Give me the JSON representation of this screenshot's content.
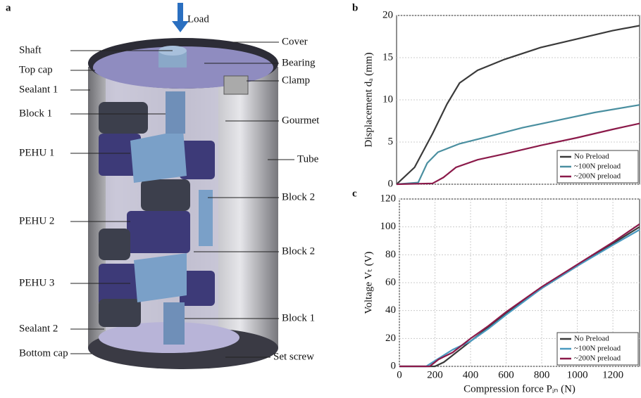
{
  "panel_a": {
    "panel_label": "a",
    "load": "Load",
    "left_labels": [
      "Shaft",
      "Top cap",
      "Sealant 1",
      "Block 1",
      "PEHU 1",
      "PEHU 2",
      "PEHU 3",
      "Sealant 2",
      "Bottom cap"
    ],
    "right_labels": [
      "Cover",
      "Bearing",
      "Clamp",
      "Gourmet",
      "Tube",
      "Block 2",
      "Block 2",
      "Block 1",
      "Set screw"
    ]
  },
  "chart_data": [
    {
      "type": "line",
      "panel_label": "b",
      "y_label": "Displacement dₐ (mm)",
      "xlim": [
        0,
        1350
      ],
      "ylim": [
        0,
        20
      ],
      "yticks": [
        0,
        5,
        10,
        15,
        20
      ],
      "grid": true,
      "legend": "lower right",
      "series": [
        {
          "name": "No Preload",
          "color": "#3a3a3a",
          "x": [
            0,
            100,
            200,
            280,
            350,
            450,
            600,
            800,
            1000,
            1200,
            1350
          ],
          "values": [
            0,
            2,
            6,
            9.5,
            12,
            13.5,
            14.8,
            16.2,
            17.2,
            18.2,
            18.8
          ]
        },
        {
          "name": "~100N preload",
          "color": "#4a8fa0",
          "x": [
            0,
            120,
            170,
            230,
            350,
            500,
            700,
            900,
            1100,
            1350
          ],
          "values": [
            0,
            0.2,
            2.5,
            3.8,
            4.8,
            5.6,
            6.7,
            7.6,
            8.5,
            9.4
          ]
        },
        {
          "name": "~200N preload",
          "color": "#8b1a4a",
          "x": [
            0,
            200,
            260,
            330,
            450,
            600,
            800,
            1000,
            1200,
            1350
          ],
          "values": [
            0,
            0.1,
            0.8,
            2,
            2.9,
            3.6,
            4.6,
            5.5,
            6.5,
            7.2
          ]
        }
      ]
    },
    {
      "type": "line",
      "panel_label": "c",
      "y_label": "Voltage Vₜ (V)",
      "x_label": "Compression force Pᵢₙ (N)",
      "xlim": [
        0,
        1350
      ],
      "ylim": [
        0,
        120
      ],
      "xticks": [
        0,
        200,
        400,
        600,
        800,
        1000,
        1200
      ],
      "yticks": [
        0,
        20,
        40,
        60,
        80,
        100,
        120
      ],
      "grid": true,
      "legend": "lower right",
      "series": [
        {
          "name": "No Preload",
          "color": "#3a3a3a",
          "x": [
            0,
            200,
            250,
            300,
            400,
            500,
            600,
            800,
            1000,
            1200,
            1350
          ],
          "values": [
            0,
            0,
            3,
            8,
            18,
            28,
            38,
            56,
            72,
            88,
            100
          ]
        },
        {
          "name": "~100N preload",
          "color": "#4a9ac0",
          "x": [
            0,
            150,
            200,
            300,
            400,
            500,
            600,
            800,
            1000,
            1200,
            1350
          ],
          "values": [
            0,
            0,
            4,
            12,
            18,
            27,
            37,
            56,
            72,
            87,
            98
          ]
        },
        {
          "name": "~200N preload",
          "color": "#8b1a4a",
          "x": [
            0,
            170,
            220,
            300,
            400,
            500,
            600,
            800,
            1000,
            1200,
            1350
          ],
          "values": [
            0,
            0,
            5,
            10,
            20,
            29,
            39,
            57,
            73,
            89,
            102
          ]
        }
      ]
    }
  ]
}
